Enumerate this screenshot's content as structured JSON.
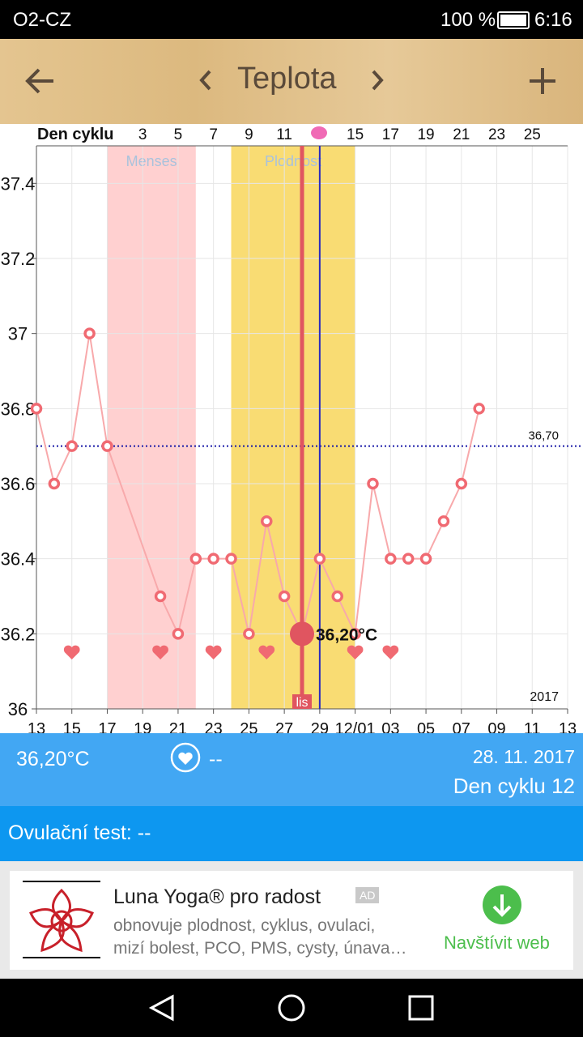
{
  "status_bar": {
    "carrier": "O2-CZ",
    "battery": "100 %",
    "time": "6:16"
  },
  "toolbar": {
    "title": "Teplota"
  },
  "chart_data": {
    "type": "line",
    "top_axis_label": "Den cyklu",
    "top_xticks": [
      {
        "value": 6,
        "label": "3"
      },
      {
        "value": 8,
        "label": "5"
      },
      {
        "value": 10,
        "label": "7"
      },
      {
        "value": 12,
        "label": "9"
      },
      {
        "value": 14,
        "label": "11"
      },
      {
        "value": 18,
        "label": "15"
      },
      {
        "value": 20,
        "label": "17"
      },
      {
        "value": 22,
        "label": "19"
      },
      {
        "value": 24,
        "label": "21"
      },
      {
        "value": 26,
        "label": "23"
      },
      {
        "value": 28,
        "label": "25"
      }
    ],
    "xlim": [
      0,
      30
    ],
    "xticks": [
      {
        "value": 0,
        "label": "13"
      },
      {
        "value": 2,
        "label": "15"
      },
      {
        "value": 4,
        "label": "17"
      },
      {
        "value": 6,
        "label": "19"
      },
      {
        "value": 8,
        "label": "21"
      },
      {
        "value": 10,
        "label": "23"
      },
      {
        "value": 12,
        "label": "25"
      },
      {
        "value": 14,
        "label": "27"
      },
      {
        "value": 16,
        "label": "29"
      },
      {
        "value": 18,
        "label": "12/01"
      },
      {
        "value": 20,
        "label": "03"
      },
      {
        "value": 22,
        "label": "05"
      },
      {
        "value": 24,
        "label": "07"
      },
      {
        "value": 26,
        "label": "09"
      },
      {
        "value": 28,
        "label": "11"
      },
      {
        "value": 30,
        "label": "13"
      }
    ],
    "ylim": [
      36,
      37.5
    ],
    "yticks": [
      36,
      36.2,
      36.4,
      36.6,
      36.8,
      37,
      37.2,
      37.4
    ],
    "grid": true,
    "series": [
      {
        "color": "#f06a72",
        "x": [
          0,
          1,
          2,
          3,
          4,
          7,
          8,
          9,
          10,
          11,
          12,
          13,
          14,
          15,
          16,
          17,
          18,
          19,
          20,
          21,
          22,
          23,
          24,
          25
        ],
        "values": [
          36.8,
          36.6,
          36.7,
          37.0,
          36.7,
          36.3,
          36.2,
          36.4,
          36.4,
          36.4,
          36.2,
          36.5,
          36.3,
          36.2,
          36.4,
          36.3,
          36.2,
          36.6,
          36.4,
          36.4,
          36.4,
          36.5,
          36.6,
          36.8
        ]
      }
    ],
    "bands": [
      {
        "label": "Menses",
        "from": 4,
        "to": 9,
        "color": "#ffd0d0"
      },
      {
        "label": "Plodnost",
        "from": 11,
        "to": 18,
        "color": "#f9dc73"
      }
    ],
    "reference_line": {
      "value": 36.7,
      "label": "36,70",
      "color": "#1a1aa8"
    },
    "vertical_markers": [
      {
        "x": 15,
        "label": "lis",
        "color": "#e05560"
      },
      {
        "x": 16,
        "color": "#2a2ac0"
      }
    ],
    "highlight": {
      "x": 15,
      "value": 36.2,
      "label": "36,20°C",
      "color": "#e05560"
    },
    "heart_days": [
      2,
      7,
      10,
      13,
      18,
      20
    ],
    "year": "2017"
  },
  "info": {
    "temperature": "36,20°C",
    "sex": "--",
    "date": "28. 11. 2017",
    "cycle_day": "Den cyklu 12",
    "ovulation_test": "Ovulační test: --"
  },
  "ad": {
    "title": "Luna Yoga® pro radost",
    "badge": "AD",
    "line1": "obnovuje plodnost, cyklus, ovulaci,",
    "line2": "mizí bolest, PCO, PMS, cysty, únava…",
    "cta": "Navštívit web"
  }
}
